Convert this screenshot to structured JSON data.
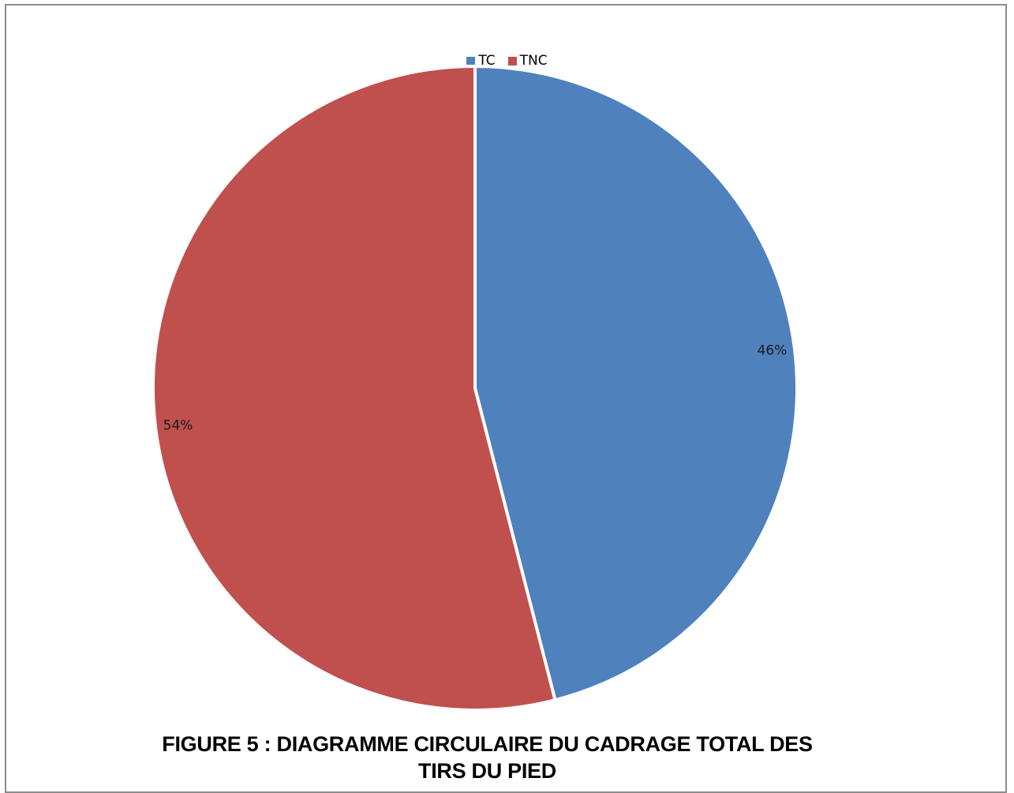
{
  "chart_data": {
    "type": "pie",
    "categories": [
      "TC",
      "TNC"
    ],
    "values": [
      46,
      54
    ],
    "labels": [
      "46%",
      "54%"
    ],
    "colors": [
      "#4F81BD",
      "#C0504D"
    ],
    "legend_position": "top-center",
    "title": ""
  },
  "caption": {
    "line1": "FIGURE 5 :  DIAGRAMME CIRCULAIRE DU CADRAGE TOTAL DES",
    "line2": "TIRS DU PIED"
  }
}
